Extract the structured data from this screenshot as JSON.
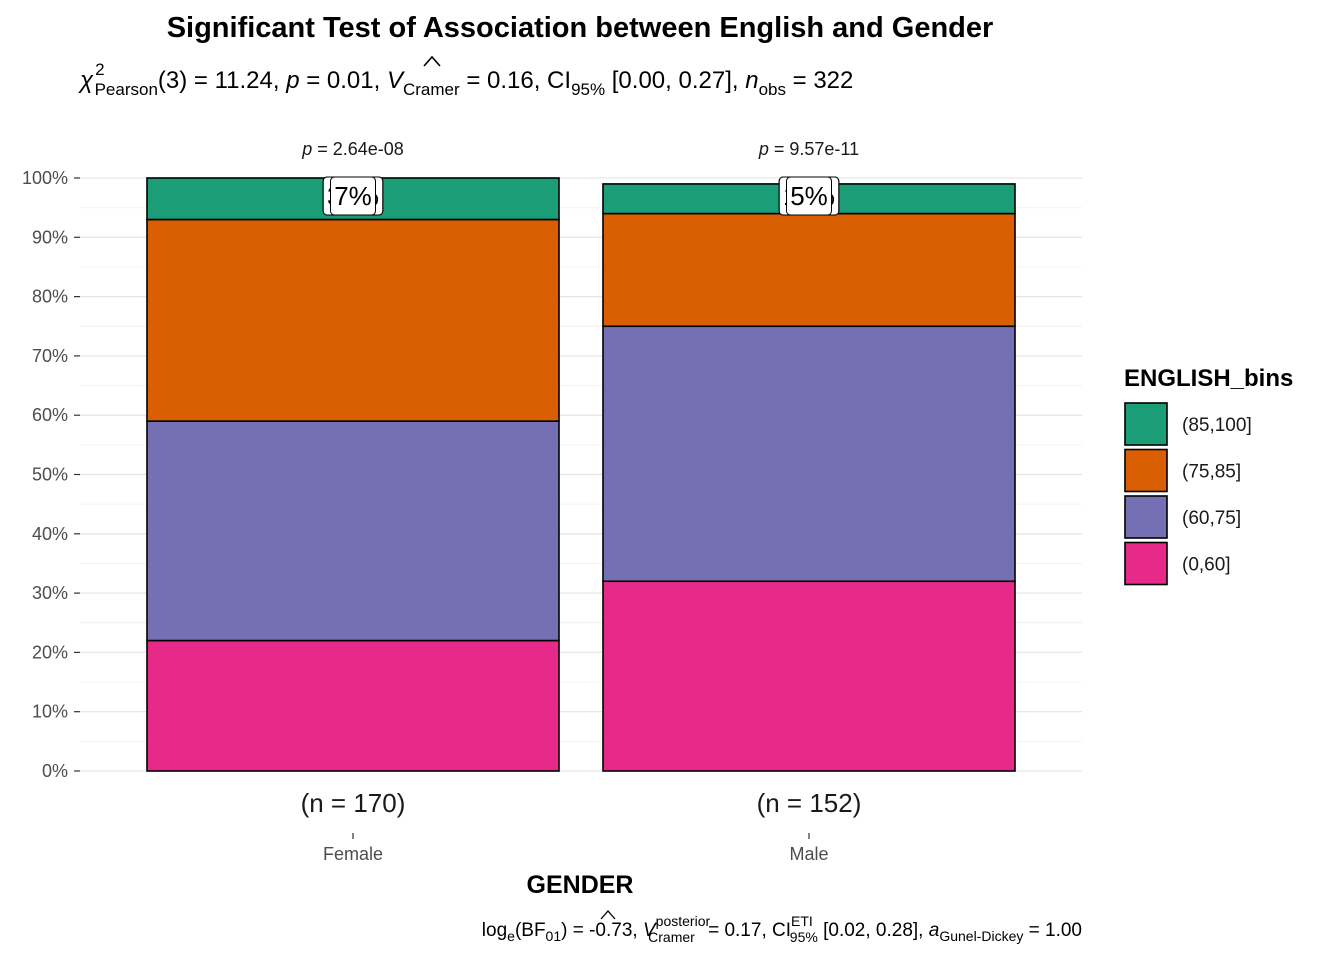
{
  "chart_data": {
    "type": "bar",
    "stacked": true,
    "title": "Significant Test of Association between English and Gender",
    "subtitle": {
      "chi_symbol": "χ",
      "chi_sup": "2",
      "chi_sub": "Pearson",
      "df_text": "(3) = 11.24, ",
      "p_sym": "p",
      "p_text": " = 0.01, ",
      "v_sym": "V",
      "v_sub": "Cramer",
      "v_text": " = 0.16, CI",
      "ci_sub": "95%",
      "ci_text": " [0.00, 0.27], ",
      "n_sym": "n",
      "n_sub": "obs",
      "n_text": " = 322"
    },
    "xlabel": "GENDER",
    "ylabel": "",
    "categories": [
      "Female",
      "Male"
    ],
    "counts": [
      "(n = 170)",
      "(n = 152)"
    ],
    "p_labels": [
      {
        "sym": "p",
        "text": " = 2.64e-08"
      },
      {
        "sym": "p",
        "text": " = 9.57e-11"
      }
    ],
    "ylim": [
      0,
      1
    ],
    "y_ticks": [
      "0%",
      "10%",
      "20%",
      "30%",
      "40%",
      "50%",
      "60%",
      "70%",
      "80%",
      "90%",
      "100%"
    ],
    "grid": true,
    "legend": {
      "title": "ENGLISH_bins",
      "position": "right",
      "entries": [
        "(85,100]",
        "(75,85]",
        "(60,75]",
        "(0,60]"
      ]
    },
    "series": [
      {
        "name": "(0,60]",
        "color": "#E7298A",
        "values": [
          0.22,
          0.32
        ],
        "labels": [
          "22%",
          "32%"
        ]
      },
      {
        "name": "(60,75]",
        "color": "#7570B3",
        "values": [
          0.37,
          0.43
        ],
        "labels": [
          "37%",
          "43%"
        ]
      },
      {
        "name": "(75,85]",
        "color": "#D95F02",
        "values": [
          0.34,
          0.19
        ],
        "labels": [
          "34%",
          "19%"
        ]
      },
      {
        "name": "(85,100]",
        "color": "#1B9E77",
        "values": [
          0.07,
          0.05
        ],
        "labels": [
          "7%",
          "5%"
        ]
      }
    ],
    "caption": {
      "log_text": "log",
      "log_sub": "e",
      "bf_text": "(BF",
      "bf_sub": "01",
      "bf_val": ") = -0.73, ",
      "v_sym": "V",
      "v_sup": "posterior",
      "v_sub": "Cramer",
      "v_val": " = 0.17, CI",
      "ci_sup": "ETI",
      "ci_sub": "95%",
      "ci_val": " [0.02, 0.28], ",
      "a_sym": "a",
      "a_sub": "Gunel-Dickey",
      "a_val": " = 1.00"
    }
  }
}
